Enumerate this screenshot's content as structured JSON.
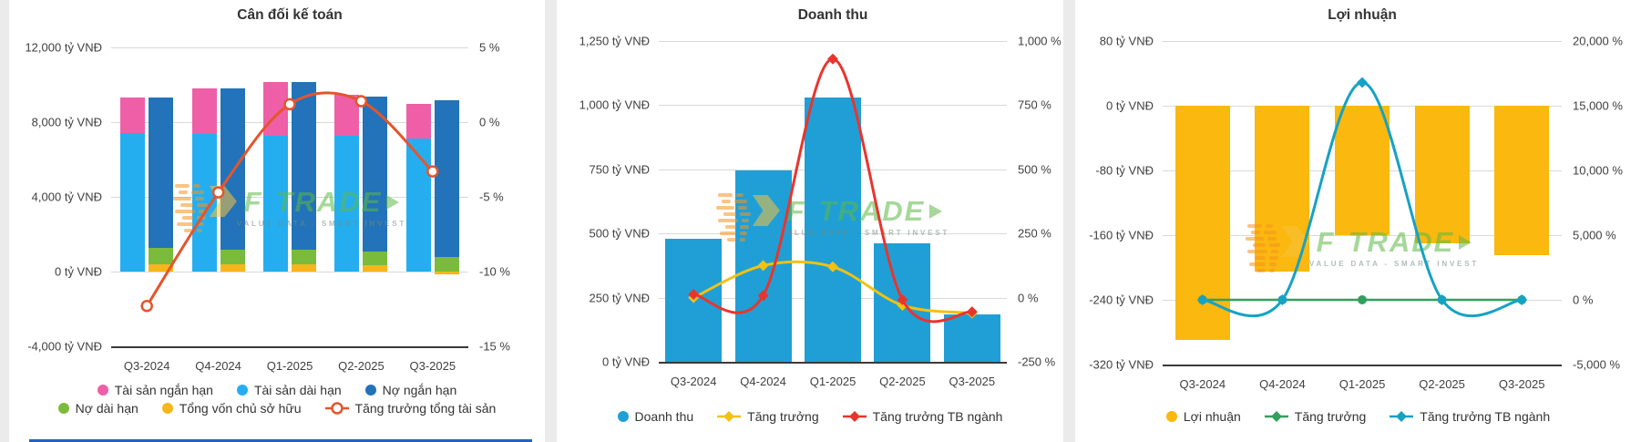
{
  "watermark": {
    "brand_f": "F",
    "brand_name": "TRADE",
    "tagline": "VALUE DATA - SMART INVEST"
  },
  "colors": {
    "pink": "#EE5FA7",
    "light_blue": "#24AEF0",
    "dark_blue": "#2273B9",
    "green": "#7BBB3C",
    "yellow": "#F7B61B",
    "orange_red_line": "#E4552C",
    "revenue_bar_blue": "#209FD6",
    "growth_yellow_line": "#F2C112",
    "industry_red_line": "#E8352C",
    "profit_bar_yellow": "#FBB80F",
    "profit_growth_green": "#32A05C",
    "profit_industry_teal": "#16A2C4",
    "watermark_orange": "#F7941E",
    "watermark_green": "#5CB946",
    "grid": "#D9D9D9",
    "axis": "#3A3A3A",
    "divider": "#EBEBEB",
    "bottom_strip_blue": "#1E63C4"
  },
  "chart_data": [
    {
      "type": "bar",
      "subtype": "stacked-columns-with-line",
      "title": "Cân đối kế toán",
      "categories": [
        "Q3-2024",
        "Q4-2024",
        "Q1-2025",
        "Q2-2025",
        "Q3-2025"
      ],
      "left_axis": {
        "unit": "tỷ VNĐ",
        "min": -4000,
        "max": 12000,
        "ticks": [
          12000,
          8000,
          4000,
          0,
          -4000
        ],
        "tick_labels": [
          "12,000 tỷ VNĐ",
          "8,000 tỷ VNĐ",
          "4,000 tỷ VNĐ",
          "0 tỷ VNĐ",
          "-4,000 tỷ VNĐ"
        ]
      },
      "right_axis": {
        "unit": "%",
        "min": -15,
        "max": 5,
        "ticks": [
          5,
          0,
          -5,
          -10,
          -15
        ],
        "tick_labels": [
          "5 %",
          "0 %",
          "-5 %",
          "-10 %",
          "-15 %"
        ]
      },
      "bar_columns": [
        {
          "name": "tai-san",
          "stack": [
            {
              "series": "Tài sản dài hạn",
              "color": "#24AEF0",
              "values": [
                7400,
                7350,
                7250,
                7250,
                7100
              ]
            },
            {
              "series": "Tài sản ngắn hạn",
              "color": "#EE5FA7",
              "values": [
                1900,
                2450,
                2900,
                2200,
                1900
              ]
            }
          ]
        },
        {
          "name": "nguon-von",
          "stack": [
            {
              "series": "Tổng vốn chủ sở hữu",
              "color": "#F7B61B",
              "values": [
                400,
                380,
                380,
                350,
                -150
              ]
            },
            {
              "series": "Nợ dài hạn",
              "color": "#7BBB3C",
              "values": [
                850,
                800,
                780,
                700,
                800
              ]
            },
            {
              "series": "Nợ ngắn hạn",
              "color": "#2273B9",
              "values": [
                8050,
                8620,
                9000,
                8300,
                8350
              ]
            }
          ]
        }
      ],
      "lines": [
        {
          "series": "Tăng trưởng tổng tài sản",
          "axis": "right",
          "color": "#E4552C",
          "marker": "hollow-circle",
          "width": 3,
          "values": [
            -12.3,
            -4.7,
            1.2,
            1.4,
            -3.3
          ]
        }
      ],
      "legend_rows": [
        [
          {
            "label": "Tài sản ngắn hạn",
            "swatch": "dot",
            "color": "#EE5FA7"
          },
          {
            "label": "Tài sản dài hạn",
            "swatch": "dot",
            "color": "#24AEF0"
          },
          {
            "label": "Nợ ngắn hạn",
            "swatch": "dot",
            "color": "#2273B9"
          }
        ],
        [
          {
            "label": "Nợ dài hạn",
            "swatch": "dot",
            "color": "#7BBB3C"
          },
          {
            "label": "Tổng vốn chủ sở hữu",
            "swatch": "dot",
            "color": "#F7B61B"
          },
          {
            "label": "Tăng trưởng tổng tài sản",
            "swatch": "hollow-circle-line",
            "color": "#E4552C"
          }
        ]
      ]
    },
    {
      "type": "bar",
      "subtype": "columns-with-lines",
      "title": "Doanh thu",
      "categories": [
        "Q3-2024",
        "Q4-2024",
        "Q1-2025",
        "Q2-2025",
        "Q3-2025"
      ],
      "left_axis": {
        "unit": "tỷ VNĐ",
        "min": 0,
        "max": 1250,
        "ticks": [
          1250,
          1000,
          750,
          500,
          250,
          0
        ],
        "tick_labels": [
          "1,250 tỷ VNĐ",
          "1,000 tỷ VNĐ",
          "750 tỷ VNĐ",
          "500 tỷ VNĐ",
          "250 tỷ VNĐ",
          "0 tỷ VNĐ"
        ]
      },
      "right_axis": {
        "unit": "%",
        "min": -250,
        "max": 1000,
        "ticks": [
          1000,
          750,
          500,
          250,
          0,
          -250
        ],
        "tick_labels": [
          "1,000 %",
          "750 %",
          "500 %",
          "250 %",
          "0 %",
          "-250 %"
        ]
      },
      "bar_columns": [
        {
          "name": "doanh-thu",
          "stack": [
            {
              "series": "Doanh thu",
              "color": "#209FD6",
              "values": [
                480,
                745,
                1030,
                460,
                185
              ]
            }
          ]
        }
      ],
      "lines": [
        {
          "series": "Tăng trưởng",
          "axis": "right",
          "color": "#F2C112",
          "marker": "diamond",
          "width": 3,
          "values": [
            0,
            125,
            120,
            -30,
            -60
          ]
        },
        {
          "series": "Tăng trưởng TB ngành",
          "axis": "right",
          "color": "#E8352C",
          "marker": "diamond",
          "width": 3,
          "values": [
            13,
            8,
            930,
            -8,
            -55
          ]
        }
      ],
      "legend_rows": [
        [
          {
            "label": "Doanh thu",
            "swatch": "dot",
            "color": "#209FD6"
          },
          {
            "label": "Tăng trưởng",
            "swatch": "diamond-line",
            "color": "#F2C112"
          },
          {
            "label": "Tăng trưởng TB ngành",
            "swatch": "diamond-line",
            "color": "#E8352C"
          }
        ]
      ]
    },
    {
      "type": "bar",
      "subtype": "columns-with-lines",
      "title": "Lợi nhuận",
      "categories": [
        "Q3-2024",
        "Q4-2024",
        "Q1-2025",
        "Q2-2025",
        "Q3-2025"
      ],
      "left_axis": {
        "unit": "tỷ VNĐ",
        "min": -320,
        "max": 80,
        "ticks": [
          80,
          0,
          -80,
          -160,
          -240,
          -320
        ],
        "tick_labels": [
          "80 tỷ VNĐ",
          "0 tỷ VNĐ",
          "-80 tỷ VNĐ",
          "-160 tỷ VNĐ",
          "-240 tỷ VNĐ",
          "-320 tỷ VNĐ"
        ]
      },
      "right_axis": {
        "unit": "%",
        "min": -5000,
        "max": 20000,
        "ticks": [
          20000,
          15000,
          10000,
          5000,
          0,
          -5000
        ],
        "tick_labels": [
          "20,000 %",
          "15,000 %",
          "10,000 %",
          "5,000 %",
          "0 %",
          "-5,000 %"
        ]
      },
      "bar_columns": [
        {
          "name": "loi-nhuan",
          "stack": [
            {
              "series": "Lợi nhuận",
              "color": "#FBB80F",
              "values": [
                -290,
                -205,
                -160,
                -170,
                -185
              ]
            }
          ]
        }
      ],
      "lines": [
        {
          "series": "Tăng trưởng",
          "axis": "right",
          "color": "#32A05C",
          "marker": "dot",
          "width": 2.5,
          "values": [
            0,
            0,
            0,
            0,
            0
          ]
        },
        {
          "series": "Tăng trưởng TB ngành",
          "axis": "right",
          "color": "#16A2C4",
          "marker": "diamond",
          "width": 3,
          "values": [
            0,
            0,
            16800,
            0,
            0
          ]
        }
      ],
      "legend_rows": [
        [
          {
            "label": "Lợi nhuận",
            "swatch": "dot",
            "color": "#FBB80F"
          },
          {
            "label": "Tăng trưởng",
            "swatch": "diamond-line",
            "color": "#32A05C"
          },
          {
            "label": "Tăng trưởng TB ngành",
            "swatch": "diamond-line",
            "color": "#16A2C4"
          }
        ]
      ]
    }
  ]
}
